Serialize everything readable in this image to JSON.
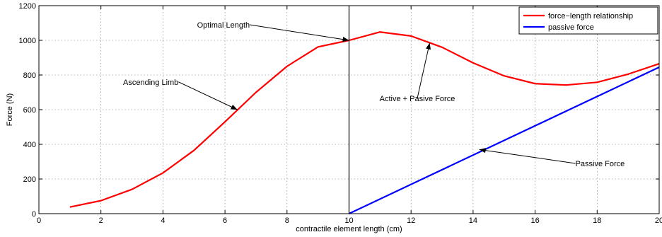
{
  "chart_data": {
    "type": "line",
    "xlabel": "contractile element length (cm)",
    "ylabel": "Force (N)",
    "xlim": [
      0,
      20
    ],
    "ylim": [
      0,
      1200
    ],
    "xticks": [
      0,
      2,
      4,
      6,
      8,
      10,
      12,
      14,
      16,
      18,
      20
    ],
    "yticks": [
      0,
      200,
      400,
      600,
      800,
      1000,
      1200
    ],
    "grid": true,
    "legend_position": "top-right",
    "series": [
      {
        "name": "force−length relationship",
        "color": "#ff0000",
        "x": [
          1,
          2,
          3,
          4,
          5,
          6,
          7,
          8,
          9,
          10,
          11,
          12,
          13,
          14,
          15,
          16,
          17,
          18,
          19,
          20
        ],
        "y": [
          38,
          75,
          140,
          235,
          365,
          530,
          700,
          850,
          962,
          1000,
          1048,
          1025,
          960,
          870,
          795,
          750,
          742,
          758,
          805,
          865
        ]
      },
      {
        "name": "passive force",
        "color": "#0000ff",
        "x": [
          10,
          20
        ],
        "y": [
          0,
          845
        ]
      }
    ],
    "vertical_line": {
      "x": 10,
      "color": "#000000"
    },
    "annotations": [
      {
        "text": "Optimal Length",
        "arrow_to": [
          10,
          1000
        ],
        "text_pos": [
          6.8,
          1090
        ]
      },
      {
        "text": "Ascending Limb",
        "arrow_to": [
          6.4,
          600
        ],
        "text_pos": [
          4.5,
          760
        ]
      },
      {
        "text": "Active + Pasive Force",
        "arrow_to": [
          12.6,
          985
        ],
        "text_pos": [
          12.2,
          665
        ]
      },
      {
        "text": "Passive Force",
        "arrow_to": [
          14.2,
          370
        ],
        "text_pos": [
          17.3,
          290
        ]
      }
    ]
  }
}
